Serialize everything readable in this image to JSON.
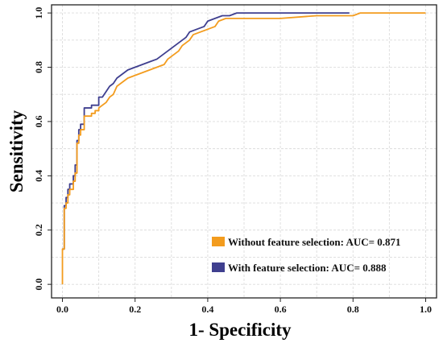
{
  "chart_data": {
    "type": "line",
    "title": "",
    "xlabel": "1- Specificity",
    "ylabel": "Sensitivity",
    "xlim": [
      -0.03,
      1.03
    ],
    "ylim": [
      -0.05,
      1.03
    ],
    "x_ticks": [
      "0.0",
      "0.2",
      "0.4",
      "0.6",
      "0.8",
      "1.0"
    ],
    "y_ticks": [
      "0.0",
      "0.2",
      "0.4",
      "0.6",
      "0.8",
      "1.0"
    ],
    "grid": true,
    "legend_position": "bottom-right",
    "series": [
      {
        "name": "Without feature selection: AUC= 0.871",
        "color": "#F39C1E",
        "points": [
          [
            0,
            0
          ],
          [
            0,
            0.13
          ],
          [
            0.005,
            0.13
          ],
          [
            0.005,
            0.28
          ],
          [
            0.01,
            0.28
          ],
          [
            0.01,
            0.3
          ],
          [
            0.015,
            0.3
          ],
          [
            0.015,
            0.33
          ],
          [
            0.02,
            0.33
          ],
          [
            0.02,
            0.35
          ],
          [
            0.03,
            0.35
          ],
          [
            0.03,
            0.38
          ],
          [
            0.035,
            0.38
          ],
          [
            0.035,
            0.41
          ],
          [
            0.04,
            0.41
          ],
          [
            0.04,
            0.52
          ],
          [
            0.045,
            0.52
          ],
          [
            0.045,
            0.55
          ],
          [
            0.05,
            0.55
          ],
          [
            0.05,
            0.57
          ],
          [
            0.06,
            0.57
          ],
          [
            0.06,
            0.62
          ],
          [
            0.08,
            0.62
          ],
          [
            0.08,
            0.63
          ],
          [
            0.09,
            0.63
          ],
          [
            0.09,
            0.64
          ],
          [
            0.1,
            0.64
          ],
          [
            0.1,
            0.65
          ],
          [
            0.12,
            0.67
          ],
          [
            0.13,
            0.69
          ],
          [
            0.14,
            0.7
          ],
          [
            0.15,
            0.73
          ],
          [
            0.16,
            0.74
          ],
          [
            0.17,
            0.75
          ],
          [
            0.18,
            0.76
          ],
          [
            0.2,
            0.77
          ],
          [
            0.22,
            0.78
          ],
          [
            0.24,
            0.79
          ],
          [
            0.26,
            0.8
          ],
          [
            0.28,
            0.81
          ],
          [
            0.29,
            0.83
          ],
          [
            0.3,
            0.84
          ],
          [
            0.31,
            0.85
          ],
          [
            0.32,
            0.86
          ],
          [
            0.33,
            0.88
          ],
          [
            0.34,
            0.89
          ],
          [
            0.35,
            0.9
          ],
          [
            0.36,
            0.92
          ],
          [
            0.38,
            0.93
          ],
          [
            0.4,
            0.94
          ],
          [
            0.42,
            0.95
          ],
          [
            0.43,
            0.97
          ],
          [
            0.45,
            0.98
          ],
          [
            0.6,
            0.98
          ],
          [
            0.7,
            0.99
          ],
          [
            0.8,
            0.99
          ],
          [
            0.82,
            1.0
          ],
          [
            1.0,
            1.0
          ]
        ]
      },
      {
        "name": "With feature selection: AUC= 0.888",
        "color": "#3F3F8F",
        "points": [
          [
            0,
            0.13
          ],
          [
            0.005,
            0.13
          ],
          [
            0.005,
            0.29
          ],
          [
            0.01,
            0.29
          ],
          [
            0.01,
            0.32
          ],
          [
            0.015,
            0.32
          ],
          [
            0.015,
            0.35
          ],
          [
            0.02,
            0.35
          ],
          [
            0.02,
            0.37
          ],
          [
            0.03,
            0.37
          ],
          [
            0.03,
            0.4
          ],
          [
            0.035,
            0.4
          ],
          [
            0.035,
            0.44
          ],
          [
            0.04,
            0.44
          ],
          [
            0.04,
            0.53
          ],
          [
            0.045,
            0.53
          ],
          [
            0.045,
            0.57
          ],
          [
            0.05,
            0.57
          ],
          [
            0.05,
            0.59
          ],
          [
            0.06,
            0.59
          ],
          [
            0.06,
            0.65
          ],
          [
            0.08,
            0.65
          ],
          [
            0.08,
            0.66
          ],
          [
            0.1,
            0.66
          ],
          [
            0.1,
            0.69
          ],
          [
            0.11,
            0.69
          ],
          [
            0.12,
            0.71
          ],
          [
            0.13,
            0.73
          ],
          [
            0.14,
            0.74
          ],
          [
            0.15,
            0.76
          ],
          [
            0.16,
            0.77
          ],
          [
            0.17,
            0.78
          ],
          [
            0.18,
            0.79
          ],
          [
            0.2,
            0.8
          ],
          [
            0.22,
            0.81
          ],
          [
            0.24,
            0.82
          ],
          [
            0.26,
            0.83
          ],
          [
            0.28,
            0.85
          ],
          [
            0.29,
            0.86
          ],
          [
            0.3,
            0.87
          ],
          [
            0.31,
            0.88
          ],
          [
            0.32,
            0.89
          ],
          [
            0.33,
            0.9
          ],
          [
            0.34,
            0.91
          ],
          [
            0.35,
            0.93
          ],
          [
            0.37,
            0.94
          ],
          [
            0.39,
            0.95
          ],
          [
            0.4,
            0.97
          ],
          [
            0.42,
            0.98
          ],
          [
            0.44,
            0.99
          ],
          [
            0.46,
            0.99
          ],
          [
            0.48,
            1.0
          ],
          [
            0.79,
            1.0
          ]
        ]
      }
    ]
  }
}
